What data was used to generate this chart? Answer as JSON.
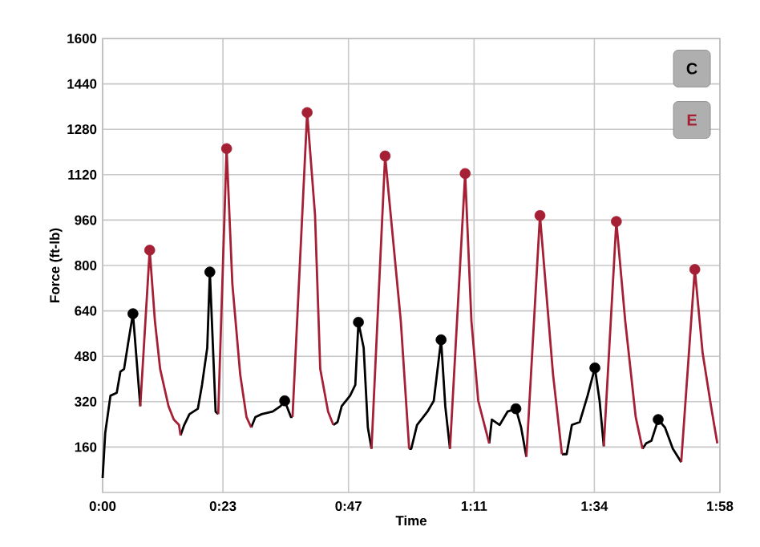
{
  "chart_data": {
    "type": "line",
    "xlabel": "Time",
    "ylabel": "Force (ft-lb)",
    "xlim": [
      0,
      118
    ],
    "ylim": [
      0,
      1600
    ],
    "xticks": [
      {
        "value": 0,
        "label": "0:00"
      },
      {
        "value": 23,
        "label": "0:23"
      },
      {
        "value": 47,
        "label": "0:47"
      },
      {
        "value": 71,
        "label": "1:11"
      },
      {
        "value": 94,
        "label": "1:34"
      },
      {
        "value": 118,
        "label": "1:58"
      }
    ],
    "yticks": [
      160,
      320,
      480,
      640,
      800,
      960,
      1120,
      1280,
      1440,
      1600
    ],
    "grid": true,
    "legend": "top right",
    "series": [
      {
        "name": "C",
        "color": "#000000",
        "marker": "none",
        "x": [
          0,
          0.5,
          1.5,
          2.7,
          3.4,
          4.1,
          4.9,
          5.8,
          7.2,
          8,
          14.9,
          15.6,
          16.6,
          18.2,
          19,
          20,
          20.5,
          21.6,
          22.1,
          25,
          28.4,
          29.2,
          30.4,
          32.5,
          34,
          34.8,
          36,
          36.3,
          38,
          44.1,
          44.9,
          45.7,
          47.3,
          48.3,
          48.9,
          49.9,
          50.7,
          51.4,
          53,
          58.6,
          59,
          60.1,
          62.1,
          63.3,
          64.7,
          65.5,
          66.4,
          68,
          73.9,
          74.4,
          75.9,
          77.4,
          79,
          80,
          81,
          83,
          87.8,
          88.7,
          89.7,
          91.2,
          92.7,
          94.1,
          95,
          95.8,
          97,
          103.2,
          103.9,
          104.9,
          106.2,
          107.5,
          109,
          110.6
        ],
        "values": [
          51,
          210,
          341,
          351,
          426,
          435,
          529,
          630,
          304,
          null,
          201,
          238,
          276,
          295,
          379,
          510,
          777,
          285,
          276,
          null,
          229,
          266,
          276,
          285,
          304,
          323,
          266,
          266,
          null,
          238,
          248,
          304,
          341,
          379,
          600,
          510,
          229,
          154,
          null,
          154,
          154,
          238,
          285,
          323,
          538,
          304,
          154,
          null,
          173,
          257,
          238,
          285,
          295,
          229,
          126,
          null,
          135,
          135,
          238,
          248,
          341,
          439,
          323,
          163,
          null,
          154,
          173,
          182,
          257,
          229,
          154,
          107
        ]
      },
      {
        "name": "E",
        "color": "#a51f35",
        "marker": "none",
        "x": [
          7.2,
          9.0,
          10,
          11,
          12.6,
          13.6,
          14.6,
          14.9,
          18,
          22.1,
          23.7,
          24.8,
          26.3,
          27.5,
          28.4,
          32,
          36.3,
          39.1,
          40.6,
          41.6,
          43.1,
          44.1,
          47,
          51.4,
          54.0,
          57,
          58.6,
          62,
          66.4,
          69.3,
          70.5,
          71.8,
          73.9,
          77,
          81,
          83.6,
          86.1,
          87.8,
          91,
          95.8,
          98.2,
          99.9,
          101.9,
          103.2,
          106,
          110.6,
          113.2,
          114.7,
          116.3,
          117.5
        ],
        "values": [
          304,
          854,
          604,
          435,
          304,
          257,
          238,
          201,
          null,
          276,
          1212,
          735,
          416,
          266,
          229,
          null,
          266,
          1339,
          979,
          435,
          285,
          238,
          null,
          154,
          1186,
          604,
          154,
          null,
          154,
          1124,
          604,
          323,
          173,
          null,
          126,
          976,
          416,
          135,
          null,
          163,
          955,
          604,
          266,
          154,
          null,
          107,
          786,
          491,
          304,
          173
        ]
      },
      {
        "color": "#000000",
        "type": "scatter",
        "marker": "circle",
        "x": [
          5.8,
          20.5,
          34.8,
          48.9,
          64.7,
          79,
          94.1,
          106.2
        ],
        "values": [
          630,
          777,
          323,
          600,
          538,
          295,
          439,
          257
        ]
      },
      {
        "color": "#a51f35",
        "type": "scatter",
        "marker": "circle",
        "x": [
          9.0,
          23.7,
          39.1,
          54.0,
          69.3,
          83.6,
          98.2,
          113.2
        ],
        "values": [
          854,
          1212,
          1339,
          1186,
          1124,
          976,
          955,
          786
        ]
      }
    ]
  }
}
